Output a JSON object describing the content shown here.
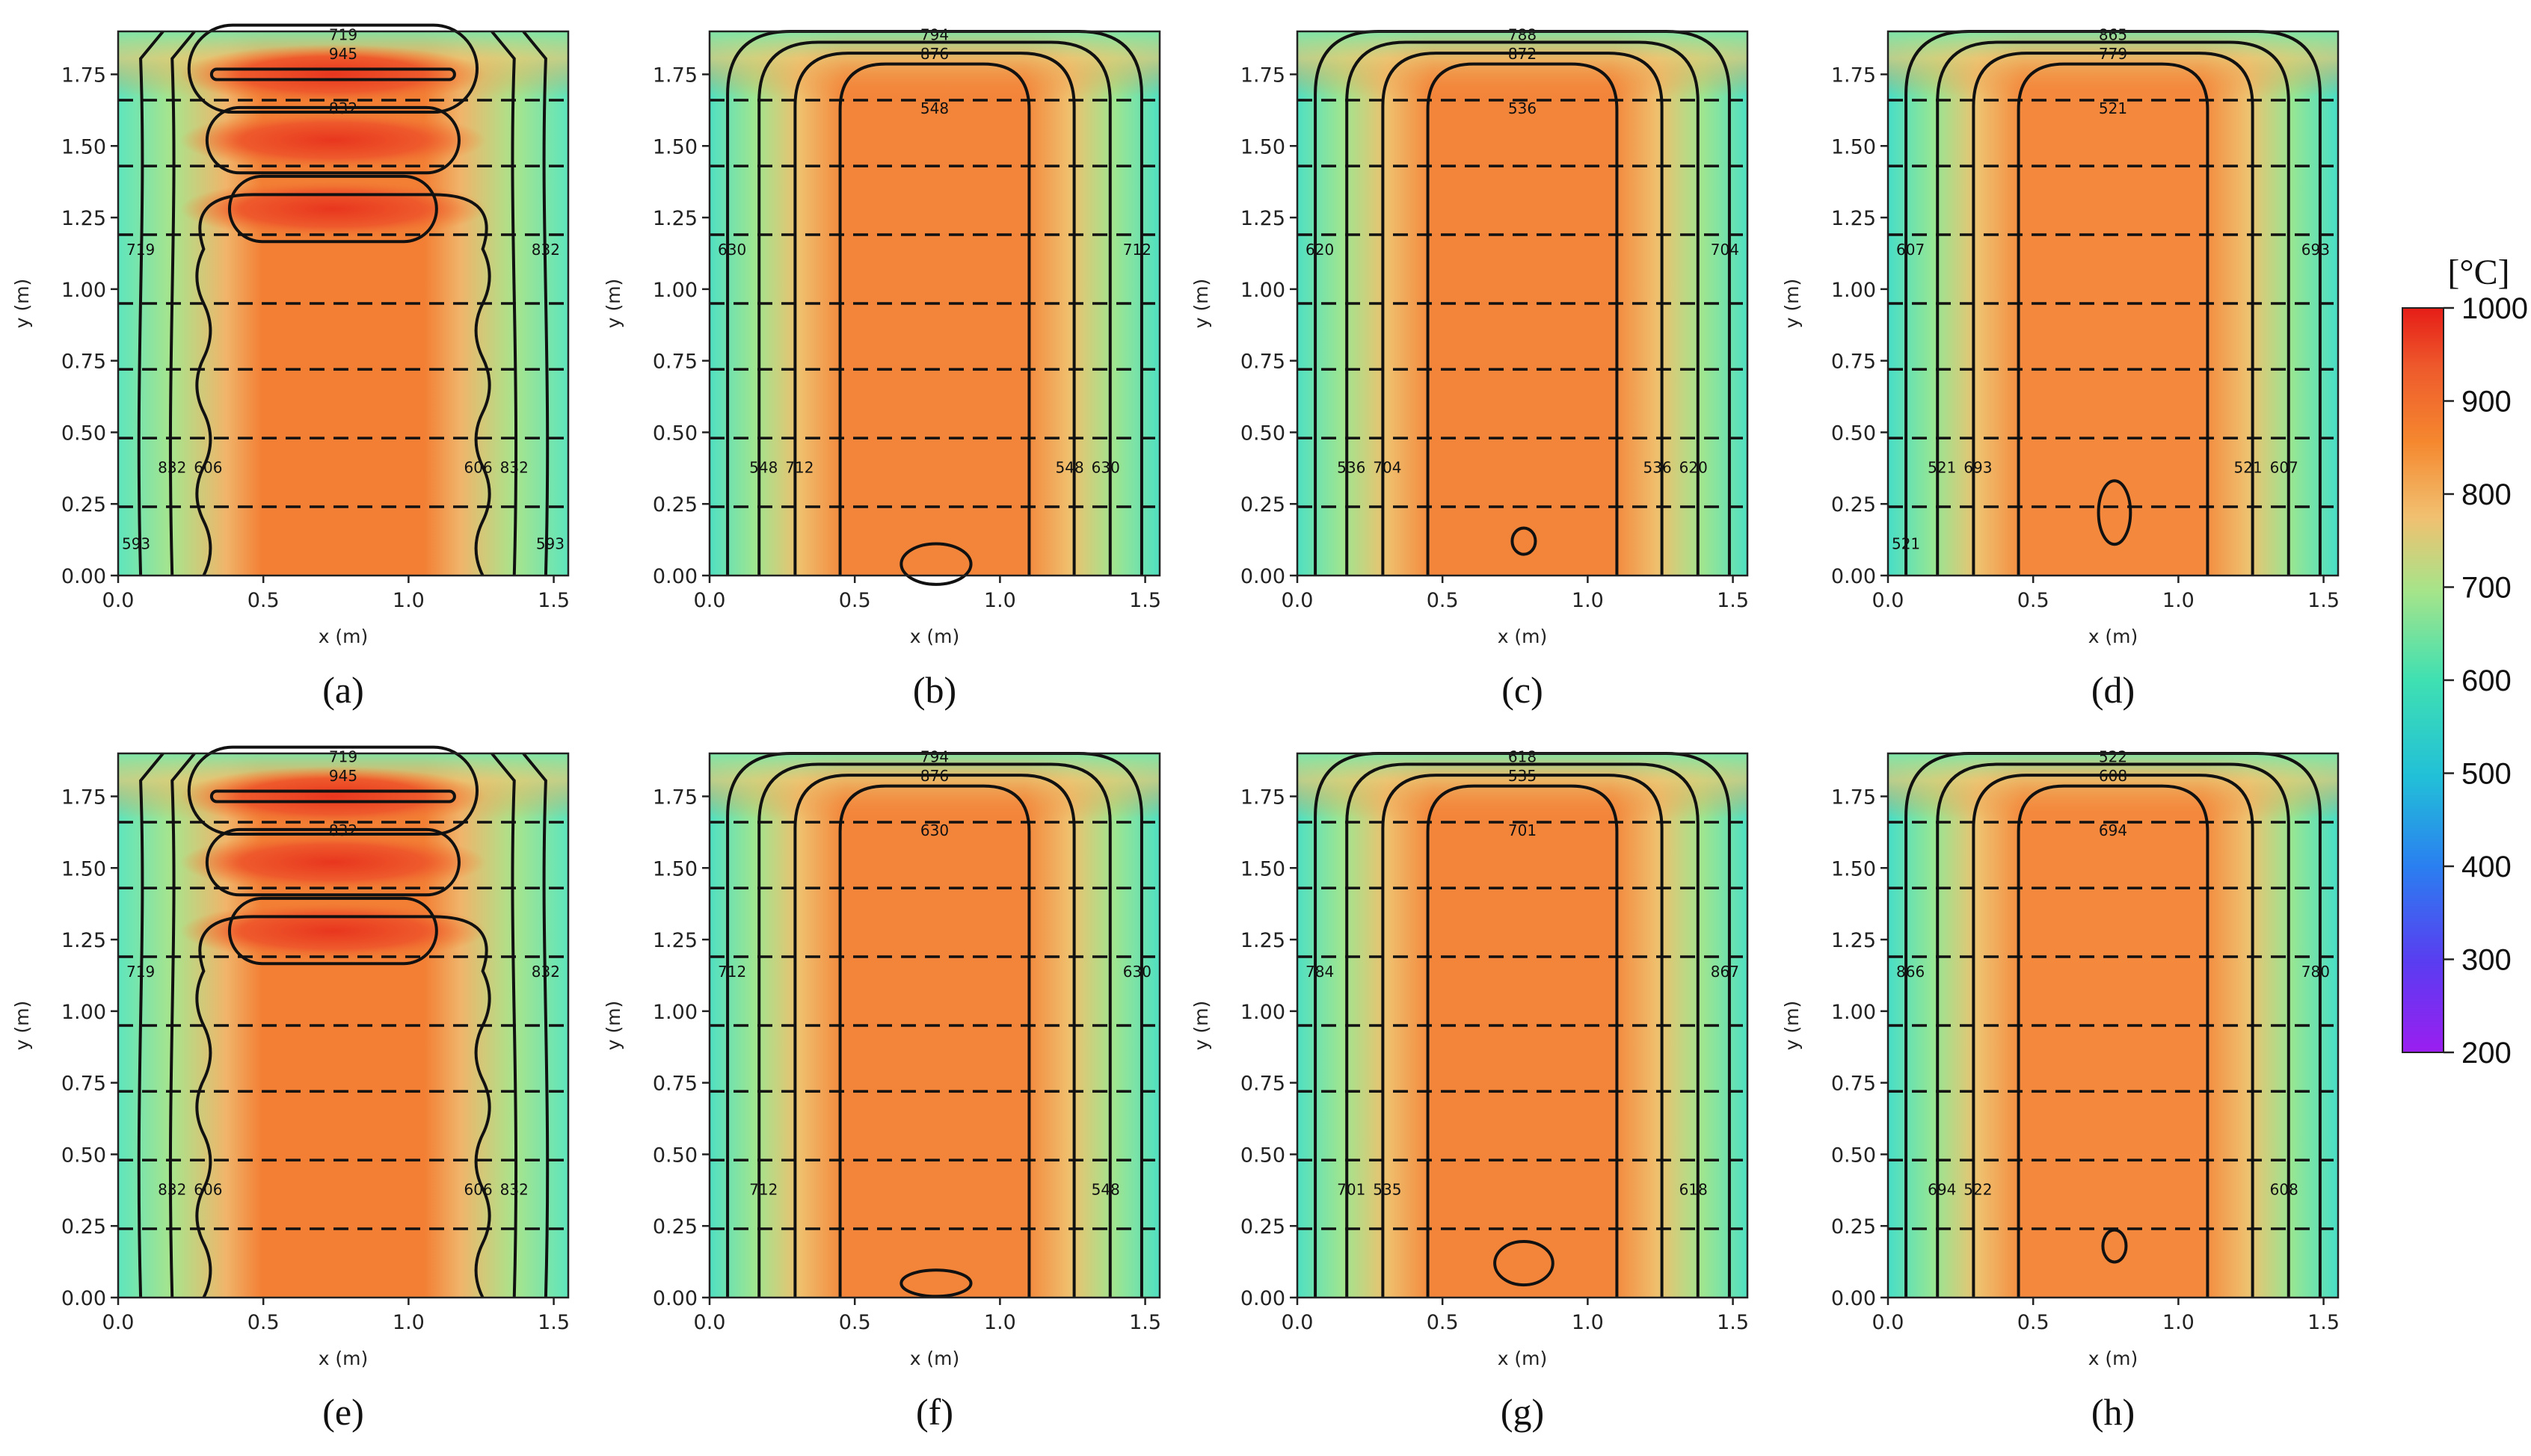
{
  "chart_data": [
    {
      "type": "heatmap",
      "panel": "(a)",
      "xlabel": "x (m)",
      "ylabel": "y (m)",
      "xlim": [
        0,
        1.55
      ],
      "ylim": [
        0,
        1.9
      ],
      "xticks": [
        "0.0",
        "0.5",
        "1.0",
        "1.5"
      ],
      "yticks": [
        "0.00",
        "0.25",
        "0.50",
        "0.75",
        "1.00",
        "1.25",
        "1.50",
        "1.75"
      ],
      "layer_lines_y": [
        0.24,
        0.48,
        0.72,
        0.95,
        1.19,
        1.43,
        1.66
      ],
      "contour_labels": [
        "719",
        "945",
        "832",
        "719",
        "832",
        "832",
        "832",
        "606",
        "606",
        "593",
        "593"
      ]
    },
    {
      "type": "heatmap",
      "panel": "(b)",
      "xlabel": "x (m)",
      "ylabel": "y (m)",
      "xlim": [
        0,
        1.55
      ],
      "ylim": [
        0,
        1.9
      ],
      "xticks": [
        "0.0",
        "0.5",
        "1.0",
        "1.5"
      ],
      "yticks": [
        "0.00",
        "0.25",
        "0.50",
        "0.75",
        "1.00",
        "1.25",
        "1.50",
        "1.75"
      ],
      "layer_lines_y": [
        0.24,
        0.48,
        0.72,
        0.95,
        1.19,
        1.43,
        1.66
      ],
      "contour_labels": [
        "794",
        "876",
        "548",
        "630",
        "712",
        "548",
        "630",
        "712",
        "548"
      ]
    },
    {
      "type": "heatmap",
      "panel": "(c)",
      "xlabel": "x (m)",
      "ylabel": "y (m)",
      "xlim": [
        0,
        1.55
      ],
      "ylim": [
        0,
        1.9
      ],
      "xticks": [
        "0.0",
        "0.5",
        "1.0",
        "1.5"
      ],
      "yticks": [
        "0.00",
        "0.25",
        "0.50",
        "0.75",
        "1.00",
        "1.25",
        "1.50",
        "1.75"
      ],
      "layer_lines_y": [
        0.24,
        0.48,
        0.72,
        0.95,
        1.19,
        1.43,
        1.66
      ],
      "contour_labels": [
        "788",
        "872",
        "536",
        "620",
        "704",
        "536",
        "620",
        "704",
        "536"
      ]
    },
    {
      "type": "heatmap",
      "panel": "(d)",
      "xlabel": "x (m)",
      "ylabel": "y (m)",
      "xlim": [
        0,
        1.55
      ],
      "ylim": [
        0,
        1.9
      ],
      "xticks": [
        "0.0",
        "0.5",
        "1.0",
        "1.5"
      ],
      "yticks": [
        "0.00",
        "0.25",
        "0.50",
        "0.75",
        "1.00",
        "1.25",
        "1.50",
        "1.75"
      ],
      "layer_lines_y": [
        0.24,
        0.48,
        0.72,
        0.95,
        1.19,
        1.43,
        1.66
      ],
      "contour_labels": [
        "865",
        "779",
        "521",
        "607",
        "693",
        "521",
        "607",
        "693",
        "521",
        "521"
      ]
    },
    {
      "type": "heatmap",
      "panel": "(e)",
      "xlabel": "x (m)",
      "ylabel": "y (m)",
      "xlim": [
        0,
        1.55
      ],
      "ylim": [
        0,
        1.9
      ],
      "xticks": [
        "0.0",
        "0.5",
        "1.0",
        "1.5"
      ],
      "yticks": [
        "0.00",
        "0.25",
        "0.50",
        "0.75",
        "1.00",
        "1.25",
        "1.50",
        "1.75"
      ],
      "layer_lines_y": [
        0.24,
        0.48,
        0.72,
        0.95,
        1.19,
        1.43,
        1.66
      ],
      "contour_labels": [
        "719",
        "945",
        "832",
        "719",
        "832",
        "832",
        "832",
        "606",
        "606"
      ]
    },
    {
      "type": "heatmap",
      "panel": "(f)",
      "xlabel": "x (m)",
      "ylabel": "y (m)",
      "xlim": [
        0,
        1.55
      ],
      "ylim": [
        0,
        1.9
      ],
      "xticks": [
        "0.0",
        "0.5",
        "1.0",
        "1.5"
      ],
      "yticks": [
        "0.00",
        "0.25",
        "0.50",
        "0.75",
        "1.00",
        "1.25",
        "1.50",
        "1.75"
      ],
      "layer_lines_y": [
        0.24,
        0.48,
        0.72,
        0.95,
        1.19,
        1.43,
        1.66
      ],
      "contour_labels": [
        "794",
        "876",
        "630",
        "712",
        "630",
        "712",
        "548"
      ]
    },
    {
      "type": "heatmap",
      "panel": "(g)",
      "xlabel": "x (m)",
      "ylabel": "y (m)",
      "xlim": [
        0,
        1.55
      ],
      "ylim": [
        0,
        1.9
      ],
      "xticks": [
        "0.0",
        "0.5",
        "1.0",
        "1.5"
      ],
      "yticks": [
        "0.00",
        "0.25",
        "0.50",
        "0.75",
        "1.00",
        "1.25",
        "1.50",
        "1.75"
      ],
      "layer_lines_y": [
        0.24,
        0.48,
        0.72,
        0.95,
        1.19,
        1.43,
        1.66
      ],
      "contour_labels": [
        "618",
        "535",
        "701",
        "784",
        "867",
        "701",
        "618",
        "535"
      ]
    },
    {
      "type": "heatmap",
      "panel": "(h)",
      "xlabel": "x (m)",
      "ylabel": "y (m)",
      "xlim": [
        0,
        1.55
      ],
      "ylim": [
        0,
        1.9
      ],
      "xticks": [
        "0.0",
        "0.5",
        "1.0",
        "1.5"
      ],
      "yticks": [
        "0.00",
        "0.25",
        "0.50",
        "0.75",
        "1.00",
        "1.25",
        "1.50",
        "1.75"
      ],
      "layer_lines_y": [
        0.24,
        0.48,
        0.72,
        0.95,
        1.19,
        1.43,
        1.66
      ],
      "contour_labels": [
        "522",
        "608",
        "694",
        "866",
        "780",
        "694",
        "608",
        "522"
      ]
    }
  ],
  "colorbar": {
    "unit": "[°C]",
    "min": 200,
    "max": 1000,
    "ticks": [
      "1000",
      "900",
      "800",
      "700",
      "600",
      "500",
      "400",
      "300",
      "200"
    ],
    "colors": [
      "#e8281e",
      "#ee5a2c",
      "#f5872f",
      "#f1b46a",
      "#c9de7c",
      "#73e79a",
      "#3fdcc4",
      "#28bdd8",
      "#2a8ff0",
      "#4a56f0",
      "#7a2ff0",
      "#9b1ef0"
    ]
  }
}
